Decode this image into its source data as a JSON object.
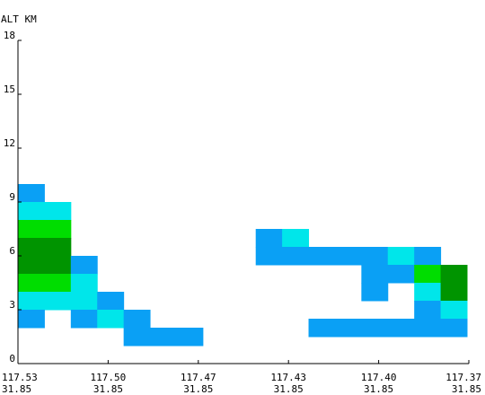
{
  "chart_data": {
    "type": "heatmap",
    "ylabel": "ALT KM",
    "ylim": [
      0,
      18
    ],
    "yticks": [
      "0",
      "3",
      "6",
      "9",
      "12",
      "15",
      "18"
    ],
    "xticks": [
      {
        "lon": "117.53",
        "lat": "31.85"
      },
      {
        "lon": "117.50",
        "lat": "31.85"
      },
      {
        "lon": "117.47",
        "lat": "31.85"
      },
      {
        "lon": "117.43",
        "lat": "31.85"
      },
      {
        "lon": "117.40",
        "lat": "31.85"
      },
      {
        "lon": "117.37",
        "lat": "31.85"
      }
    ],
    "cells": [
      {
        "col": 0,
        "alt": 9.0,
        "level": "blue"
      },
      {
        "col": 0,
        "alt": 8.0,
        "level": "cyan"
      },
      {
        "col": 1,
        "alt": 8.0,
        "level": "cyan"
      },
      {
        "col": 0,
        "alt": 7.0,
        "level": "light-green"
      },
      {
        "col": 1,
        "alt": 7.0,
        "level": "light-green"
      },
      {
        "col": 0,
        "alt": 6.0,
        "level": "dark-green"
      },
      {
        "col": 1,
        "alt": 6.0,
        "level": "dark-green"
      },
      {
        "col": 0,
        "alt": 5.0,
        "level": "dark-green"
      },
      {
        "col": 1,
        "alt": 5.0,
        "level": "dark-green"
      },
      {
        "col": 2,
        "alt": 5.0,
        "level": "blue"
      },
      {
        "col": 0,
        "alt": 4.0,
        "level": "light-green"
      },
      {
        "col": 1,
        "alt": 4.0,
        "level": "light-green"
      },
      {
        "col": 2,
        "alt": 4.0,
        "level": "cyan"
      },
      {
        "col": 0,
        "alt": 3.0,
        "level": "cyan"
      },
      {
        "col": 1,
        "alt": 3.0,
        "level": "cyan"
      },
      {
        "col": 2,
        "alt": 3.0,
        "level": "cyan"
      },
      {
        "col": 3,
        "alt": 3.0,
        "level": "blue"
      },
      {
        "col": 0,
        "alt": 2.0,
        "level": "blue"
      },
      {
        "col": 2,
        "alt": 2.0,
        "level": "blue"
      },
      {
        "col": 3,
        "alt": 2.0,
        "level": "cyan"
      },
      {
        "col": 4,
        "alt": 2.0,
        "level": "blue"
      },
      {
        "col": 4,
        "alt": 1.0,
        "level": "blue"
      },
      {
        "col": 5,
        "alt": 1.0,
        "level": "blue"
      },
      {
        "col": 6,
        "alt": 1.0,
        "level": "blue"
      },
      {
        "col": 9,
        "alt": 6.5,
        "level": "blue"
      },
      {
        "col": 10,
        "alt": 6.5,
        "level": "cyan"
      },
      {
        "col": 9,
        "alt": 5.5,
        "level": "blue"
      },
      {
        "col": 10,
        "alt": 5.5,
        "level": "blue"
      },
      {
        "col": 11,
        "alt": 5.5,
        "level": "blue"
      },
      {
        "col": 12,
        "alt": 5.5,
        "level": "blue"
      },
      {
        "col": 13,
        "alt": 5.5,
        "level": "blue"
      },
      {
        "col": 14,
        "alt": 5.5,
        "level": "cyan"
      },
      {
        "col": 15,
        "alt": 5.5,
        "level": "blue"
      },
      {
        "col": 13,
        "alt": 4.5,
        "level": "blue"
      },
      {
        "col": 14,
        "alt": 4.5,
        "level": "blue"
      },
      {
        "col": 15,
        "alt": 4.5,
        "level": "light-green"
      },
      {
        "col": 16,
        "alt": 4.5,
        "level": "dark-green"
      },
      {
        "col": 13,
        "alt": 3.5,
        "level": "blue"
      },
      {
        "col": 15,
        "alt": 3.5,
        "level": "cyan"
      },
      {
        "col": 16,
        "alt": 3.5,
        "level": "dark-green"
      },
      {
        "col": 15,
        "alt": 2.5,
        "level": "blue"
      },
      {
        "col": 16,
        "alt": 2.5,
        "level": "cyan"
      },
      {
        "col": 11,
        "alt": 1.5,
        "level": "blue"
      },
      {
        "col": 12,
        "alt": 1.5,
        "level": "blue"
      },
      {
        "col": 13,
        "alt": 1.5,
        "level": "blue"
      },
      {
        "col": 14,
        "alt": 1.5,
        "level": "blue"
      },
      {
        "col": 15,
        "alt": 1.5,
        "level": "blue"
      },
      {
        "col": 16,
        "alt": 1.5,
        "level": "blue"
      }
    ],
    "n_columns": 17,
    "cell_height_km": 1.0,
    "colors": {
      "blue": "#0aa0f5",
      "cyan": "#00e6ea",
      "light-green": "#00dd00",
      "dark-green": "#009400"
    },
    "grid": false
  }
}
